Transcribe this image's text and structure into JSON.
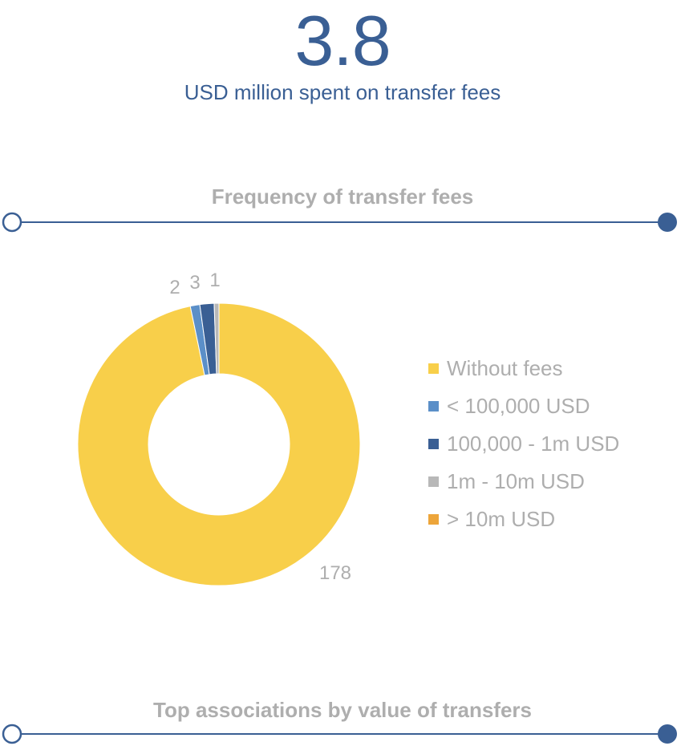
{
  "headline": {
    "value": "3.8",
    "caption": "USD million spent on transfer fees"
  },
  "sections": {
    "frequency_title": "Frequency of transfer fees",
    "top_associations_title": "Top associations by value of transfers"
  },
  "colors": {
    "accent": "#3a5f94",
    "muted_text": "#aeaeae"
  },
  "chart_data": {
    "type": "pie",
    "style": "donut",
    "categories": [
      "Without fees",
      "< 100,000 USD",
      "100,000 - 1m USD",
      "1m - 10m USD",
      "> 10m USD"
    ],
    "values": [
      178,
      2,
      3,
      1,
      0
    ],
    "data_labels": [
      "178",
      "2",
      "3",
      "1",
      ""
    ],
    "colors": [
      "#f8cf4a",
      "#5b8fc8",
      "#3a5f94",
      "#b8b8b8",
      "#eda53a"
    ],
    "legend_position": "right"
  }
}
